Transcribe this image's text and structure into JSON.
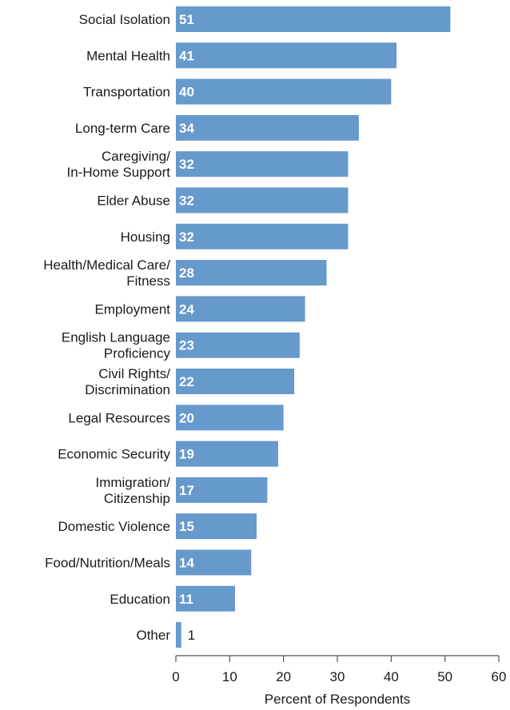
{
  "chart_data": {
    "type": "bar",
    "orientation": "horizontal",
    "categories": [
      [
        "Social Isolation"
      ],
      [
        "Mental Health"
      ],
      [
        "Transportation"
      ],
      [
        "Long-term Care"
      ],
      [
        "Caregiving/",
        "In-Home Support"
      ],
      [
        "Elder Abuse"
      ],
      [
        "Housing"
      ],
      [
        "Health/Medical Care/",
        "Fitness"
      ],
      [
        "Employment"
      ],
      [
        "English Language",
        "Proficiency"
      ],
      [
        "Civil Rights/",
        "Discrimination"
      ],
      [
        "Legal Resources"
      ],
      [
        "Economic Security"
      ],
      [
        "Immigration/",
        "Citizenship"
      ],
      [
        "Domestic Violence"
      ],
      [
        "Food/Nutrition/Meals"
      ],
      [
        "Education"
      ],
      [
        "Other"
      ]
    ],
    "values": [
      51,
      41,
      40,
      34,
      32,
      32,
      32,
      28,
      24,
      23,
      22,
      20,
      19,
      17,
      15,
      14,
      11,
      1
    ],
    "data_labels": [
      "51",
      "41",
      "40",
      "34",
      "32",
      "32",
      "32",
      "28",
      "24",
      "23",
      "22",
      "20",
      "19",
      "17",
      "15",
      "14",
      "11",
      "1"
    ],
    "xlabel": "Percent of Respondents",
    "xlim": [
      0,
      60
    ],
    "xticks": [
      0,
      10,
      20,
      30,
      40,
      50,
      60
    ],
    "xtick_labels": [
      "0",
      "10",
      "20",
      "30",
      "40",
      "50",
      "60"
    ],
    "grid": false,
    "legend": "none",
    "bar_color": "#6699cc",
    "axis_color": "#555555"
  }
}
